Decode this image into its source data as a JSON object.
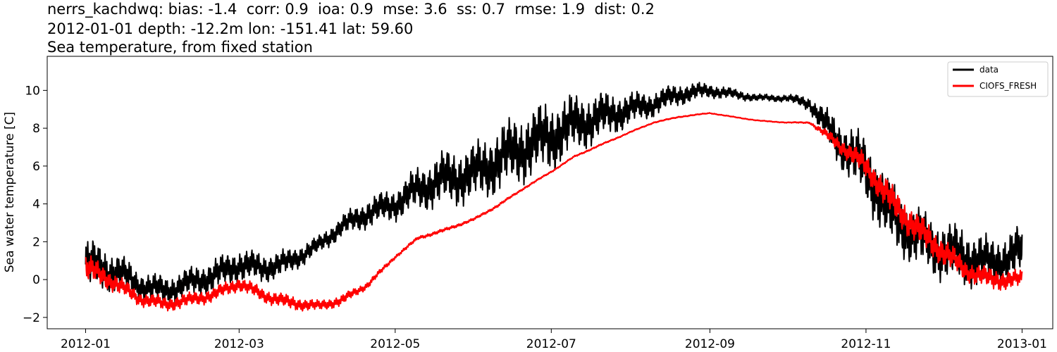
{
  "chart_data": {
    "type": "line",
    "title_lines": [
      "nerrs_kachdwq: bias: -1.4  corr: 0.9  ioa: 0.9  mse: 3.6  ss: 0.7  rmse: 1.9  dist: 0.2",
      "2012-01-01 depth: -12.2m lon: -151.41 lat: 59.60",
      "Sea temperature, from fixed station"
    ],
    "xlabel": "",
    "ylabel": "Sea water temperature [C]",
    "x_range": [
      "2011-12-17",
      "2013-01-13"
    ],
    "ylim": [
      -2.6,
      11.8
    ],
    "x_ticks": [
      "2012-01",
      "2012-03",
      "2012-05",
      "2012-07",
      "2012-09",
      "2012-11",
      "2013-01"
    ],
    "y_ticks": [
      -2,
      0,
      2,
      4,
      6,
      8,
      10
    ],
    "legend": {
      "position": "top-right",
      "entries": [
        "data",
        "CIOFS_FRESH"
      ]
    },
    "series": [
      {
        "name": "data",
        "color": "#000000",
        "x": [
          "2012-01-01",
          "2012-01-08",
          "2012-01-15",
          "2012-01-22",
          "2012-02-01",
          "2012-02-10",
          "2012-02-20",
          "2012-03-01",
          "2012-03-10",
          "2012-03-20",
          "2012-04-01",
          "2012-04-10",
          "2012-04-20",
          "2012-05-01",
          "2012-05-10",
          "2012-05-20",
          "2012-06-01",
          "2012-06-10",
          "2012-06-20",
          "2012-07-01",
          "2012-07-10",
          "2012-07-20",
          "2012-08-01",
          "2012-08-10",
          "2012-08-20",
          "2012-09-01",
          "2012-09-10",
          "2012-09-20",
          "2012-10-01",
          "2012-10-10",
          "2012-10-20",
          "2012-11-01",
          "2012-11-10",
          "2012-11-20",
          "2012-12-01",
          "2012-12-10",
          "2012-12-20",
          "2013-01-01"
        ],
        "y": [
          0.8,
          0.6,
          0.3,
          -0.3,
          -0.6,
          -0.2,
          0.2,
          0.8,
          0.6,
          0.9,
          1.8,
          2.8,
          3.5,
          4.0,
          4.8,
          5.3,
          5.6,
          6.3,
          7.0,
          7.6,
          8.2,
          8.6,
          9.0,
          9.3,
          9.8,
          10.0,
          9.8,
          9.6,
          9.6,
          9.3,
          7.5,
          5.8,
          3.5,
          2.3,
          1.5,
          1.2,
          0.8,
          1.5
        ],
        "amplitude": [
          1.4,
          1.2,
          1.0,
          0.8,
          0.8,
          0.8,
          0.9,
          0.9,
          0.8,
          0.7,
          0.5,
          0.6,
          0.8,
          0.9,
          1.2,
          1.5,
          1.6,
          1.8,
          1.9,
          1.9,
          1.6,
          1.3,
          0.9,
          0.7,
          0.6,
          0.4,
          0.3,
          0.2,
          0.2,
          0.4,
          1.2,
          1.8,
          1.8,
          1.6,
          1.6,
          1.6,
          1.4,
          1.4
        ]
      },
      {
        "name": "CIOFS_FRESH",
        "color": "#ff0000",
        "x": [
          "2012-01-01",
          "2012-01-08",
          "2012-01-15",
          "2012-01-22",
          "2012-02-01",
          "2012-02-10",
          "2012-02-20",
          "2012-03-01",
          "2012-03-10",
          "2012-03-20",
          "2012-04-01",
          "2012-04-10",
          "2012-04-20",
          "2012-05-01",
          "2012-05-10",
          "2012-05-20",
          "2012-06-01",
          "2012-06-10",
          "2012-06-20",
          "2012-07-01",
          "2012-07-10",
          "2012-07-20",
          "2012-08-01",
          "2012-08-10",
          "2012-08-20",
          "2012-09-01",
          "2012-09-10",
          "2012-09-20",
          "2012-10-01",
          "2012-10-10",
          "2012-10-20",
          "2012-11-01",
          "2012-11-10",
          "2012-11-20",
          "2012-12-01",
          "2012-12-10",
          "2012-12-20",
          "2013-01-01"
        ],
        "y": [
          0.6,
          0.2,
          -0.4,
          -1.0,
          -1.3,
          -1.1,
          -0.8,
          -0.2,
          -0.8,
          -1.2,
          -1.4,
          -1.1,
          -0.3,
          1.2,
          2.2,
          2.6,
          3.2,
          3.9,
          4.8,
          5.7,
          6.5,
          7.1,
          7.8,
          8.3,
          8.6,
          8.8,
          8.6,
          8.4,
          8.3,
          8.3,
          7.3,
          6.0,
          4.3,
          2.8,
          1.5,
          0.5,
          0.0,
          0.0
        ],
        "amplitude": [
          0.8,
          0.6,
          0.5,
          0.4,
          0.4,
          0.4,
          0.4,
          0.4,
          0.4,
          0.4,
          0.3,
          0.3,
          0.2,
          0.1,
          0.1,
          0.1,
          0.08,
          0.08,
          0.06,
          0.05,
          0.05,
          0.05,
          0.04,
          0.04,
          0.04,
          0.03,
          0.03,
          0.03,
          0.03,
          0.05,
          0.4,
          0.7,
          0.9,
          0.9,
          0.8,
          0.6,
          0.6,
          0.5
        ]
      }
    ]
  }
}
